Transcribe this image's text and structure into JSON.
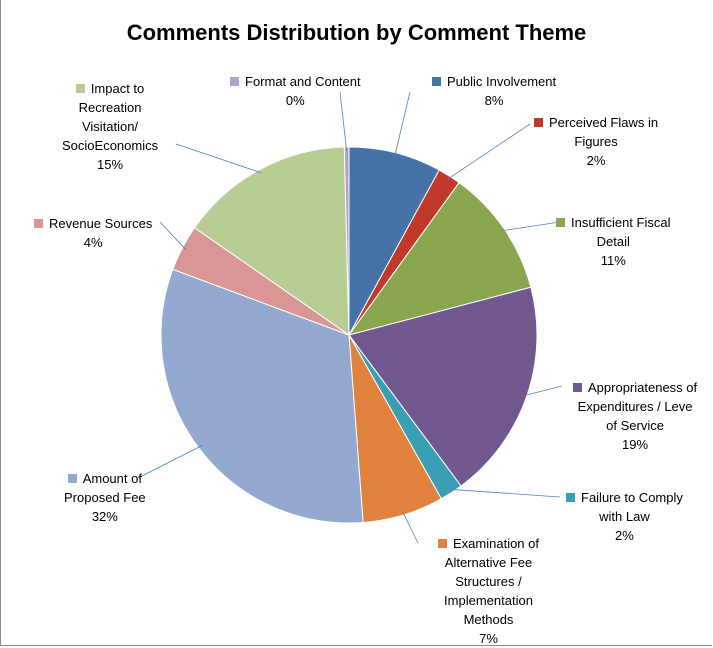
{
  "chart_data": {
    "type": "pie",
    "title": "Comments Distribution by Comment Theme",
    "slices": [
      {
        "lines": [
          "Public Involvement"
        ],
        "pct_label": "8%",
        "value": 8,
        "color": "#4572A7"
      },
      {
        "lines": [
          "Perceived Flaws in",
          "Figures"
        ],
        "pct_label": "2%",
        "value": 2,
        "color": "#C0392B"
      },
      {
        "lines": [
          "Insufficient Fiscal",
          "Detail"
        ],
        "pct_label": "11%",
        "value": 11,
        "color": "#89A54E"
      },
      {
        "lines": [
          "Appropriateness of",
          "Expenditures / Leve",
          "of Service"
        ],
        "pct_label": "19%",
        "value": 19,
        "color": "#71588F"
      },
      {
        "lines": [
          "Failure to Comply",
          "with Law"
        ],
        "pct_label": "2%",
        "value": 2,
        "color": "#3A9EB4"
      },
      {
        "lines": [
          "Examination of",
          "Alternative Fee",
          "Structures /",
          "Implementation",
          "Methods"
        ],
        "pct_label": "7%",
        "value": 7,
        "color": "#E0823D"
      },
      {
        "lines": [
          "Amount of",
          "Proposed Fee"
        ],
        "pct_label": "32%",
        "value": 32,
        "color": "#93A9CF"
      },
      {
        "lines": [
          "Revenue Sources"
        ],
        "pct_label": "4%",
        "value": 4,
        "color": "#D99694"
      },
      {
        "lines": [
          "Impact to",
          "Recreation",
          "Visitation/",
          "SocioEconomics"
        ],
        "pct_label": "15%",
        "value": 15,
        "color": "#B7CD93"
      },
      {
        "lines": [
          "Format and Content"
        ],
        "pct_label": "0%",
        "value": 0.4,
        "color": "#B3A2C7"
      }
    ]
  }
}
